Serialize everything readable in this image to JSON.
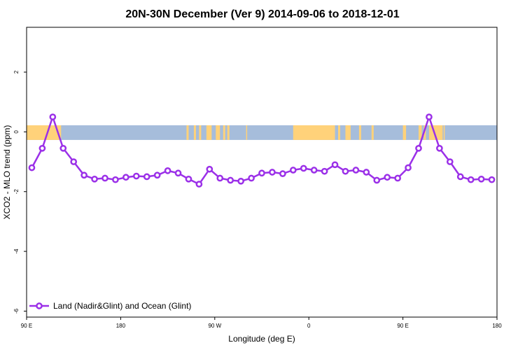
{
  "chart_data": {
    "type": "line",
    "title": "20N-30N December (Ver 9)   2014-09-06 to 2018-12-01",
    "xlabel": "Longitude (deg E)",
    "ylabel": "XCO2 - MLO trend (ppm)",
    "x_ticks": [
      {
        "value": 90,
        "label": "90 E"
      },
      {
        "value": 180,
        "label": "180"
      },
      {
        "value": 270,
        "label": "90 W"
      },
      {
        "value": 360,
        "label": "0"
      },
      {
        "value": 450,
        "label": "90 E"
      },
      {
        "value": 540,
        "label": "180"
      }
    ],
    "y_ticks": [
      {
        "value": 2,
        "label": "2"
      },
      {
        "value": 0,
        "label": "0"
      },
      {
        "value": -2,
        "label": "-2"
      },
      {
        "value": -4,
        "label": "-4"
      },
      {
        "value": -6,
        "label": "-6"
      }
    ],
    "xlim": [
      90,
      540
    ],
    "ylim": [
      -6.2,
      3.5
    ],
    "legend_position": "bottom-left",
    "series": [
      {
        "name": "Land (Nadir&Glint) and Ocean (Glint)",
        "color": "#9b30e8",
        "x": [
          95,
          105,
          115,
          125,
          135,
          145,
          155,
          165,
          175,
          185,
          195,
          205,
          215,
          225,
          235,
          245,
          255,
          265,
          275,
          285,
          295,
          305,
          315,
          325,
          335,
          345,
          355,
          365,
          375,
          385,
          395,
          405,
          415,
          425,
          435,
          445,
          455,
          465,
          475,
          485,
          495,
          505,
          515,
          525,
          535
        ],
        "values": [
          -1.2,
          -0.55,
          0.5,
          -0.55,
          -1.0,
          -1.45,
          -1.58,
          -1.55,
          -1.6,
          -1.52,
          -1.48,
          -1.5,
          -1.45,
          -1.3,
          -1.38,
          -1.58,
          -1.75,
          -1.25,
          -1.55,
          -1.62,
          -1.65,
          -1.55,
          -1.38,
          -1.35,
          -1.4,
          -1.28,
          -1.22,
          -1.28,
          -1.32,
          -1.1,
          -1.32,
          -1.28,
          -1.35,
          -1.62,
          -1.52,
          -1.55,
          -1.2,
          -0.55,
          0.5,
          -0.55,
          -1.0,
          -1.5,
          -1.6,
          -1.58,
          -1.6
        ]
      }
    ],
    "land_mask": {
      "colors": {
        "ocean": "#a6bddb",
        "land": "#ffd27a"
      },
      "y_range": [
        -0.27,
        0.22
      ],
      "land_segments": [
        [
          90,
          123
        ],
        [
          243,
          245
        ],
        [
          250,
          252
        ],
        [
          255,
          257
        ],
        [
          262,
          267
        ],
        [
          271,
          275
        ],
        [
          278,
          280
        ],
        [
          282,
          284
        ],
        [
          300,
          301
        ],
        [
          345,
          385
        ],
        [
          388,
          390
        ],
        [
          395,
          400
        ],
        [
          408,
          410
        ],
        [
          420,
          422
        ],
        [
          450,
          453
        ],
        [
          465,
          468
        ],
        [
          470,
          472
        ],
        [
          475,
          488
        ],
        [
          489,
          490
        ]
      ]
    }
  }
}
